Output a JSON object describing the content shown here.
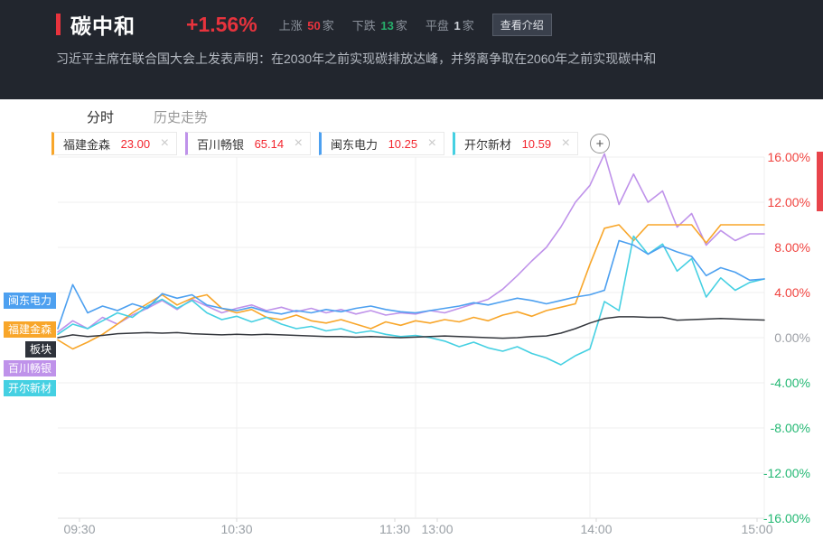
{
  "header": {
    "title": "碳中和",
    "change": "+1.56%",
    "stats": [
      {
        "label": "上涨",
        "count": "50",
        "unit": "家",
        "color": "#e8333d"
      },
      {
        "label": "下跌",
        "count": "13",
        "unit": "家",
        "color": "#27ae6b"
      },
      {
        "label": "平盘",
        "count": "1",
        "unit": "家",
        "color": "#cdd1d8"
      }
    ],
    "intro_button": "查看介绍",
    "description": "习近平主席在联合国大会上发表声明：在2030年之前实现碳排放达峰，并努离争取在2060年之前实现碳中和"
  },
  "tabs": [
    {
      "label": "分时",
      "active": true
    },
    {
      "label": "历史走势",
      "active": false
    }
  ],
  "watchlist": [
    {
      "name": "福建金森",
      "price": "23.00",
      "color": "#f8a62a",
      "close_label": "×"
    },
    {
      "name": "百川畅银",
      "price": "65.14",
      "color": "#bf92ea",
      "close_label": "×"
    },
    {
      "name": "闽东电力",
      "price": "10.25",
      "color": "#4da0f0",
      "close_label": "×"
    },
    {
      "name": "开尔新材",
      "price": "10.59",
      "color": "#45d0e2",
      "close_label": "×"
    }
  ],
  "add_button_label": "+",
  "chart_data": {
    "type": "line",
    "title": "碳中和板块分时走势",
    "interval_minutes": 5,
    "session_minutes": [
      0,
      120,
      240
    ],
    "ylim": [
      -16,
      16
    ],
    "grid": true,
    "x_ticks": [
      {
        "label": "09:30",
        "minute": 0,
        "dx": 24
      },
      {
        "label": "10:30",
        "minute": 60,
        "dx": 0
      },
      {
        "label": "11:30",
        "minute": 120,
        "dx": -23
      },
      {
        "label": "13:00",
        "minute": 120,
        "dx": 24
      },
      {
        "label": "14:00",
        "minute": 180,
        "dx": 7
      },
      {
        "label": "15:00",
        "minute": 240,
        "dx": -8
      }
    ],
    "y_ticks": [
      {
        "label": "16.00%",
        "value": 16,
        "color": "#f0433f"
      },
      {
        "label": "12.00%",
        "value": 12,
        "color": "#f0433f"
      },
      {
        "label": "8.00%",
        "value": 8,
        "color": "#f0433f"
      },
      {
        "label": "4.00%",
        "value": 4,
        "color": "#f0433f"
      },
      {
        "label": "0.00%",
        "value": 0,
        "color": "#9da0a6"
      },
      {
        "label": "-4.00%",
        "value": -4,
        "color": "#23b873"
      },
      {
        "label": "-8.00%",
        "value": -8,
        "color": "#23b873"
      },
      {
        "label": "-12.00%",
        "value": -12,
        "color": "#23b873"
      },
      {
        "label": "-16.00%",
        "value": -16,
        "color": "#23b873"
      }
    ],
    "grid_vertical_minutes": [
      60,
      120,
      180,
      240
    ],
    "series": [
      {
        "name": "百川畅银",
        "color": "#bf92ea",
        "values": [
          0.5,
          1.5,
          0.8,
          1.8,
          1.2,
          2.0,
          2.6,
          3.3,
          2.5,
          3.4,
          2.8,
          2.2,
          2.6,
          2.9,
          2.4,
          2.7,
          2.3,
          2.6,
          2.2,
          2.5,
          2.1,
          2.4,
          2.0,
          2.2,
          2.1,
          2.4,
          2.2,
          2.6,
          3.0,
          3.4,
          4.3,
          5.5,
          6.8,
          8.0,
          9.8,
          12.0,
          13.5,
          16.3,
          11.8,
          14.5,
          12.0,
          13.0,
          9.8,
          11.0,
          8.2,
          9.5,
          8.6,
          9.2,
          9.2
        ]
      },
      {
        "name": "福建金森",
        "color": "#f8a62a",
        "values": [
          -0.2,
          -1.0,
          -0.4,
          0.3,
          1.2,
          2.2,
          3.0,
          3.8,
          2.9,
          3.5,
          3.8,
          2.6,
          2.2,
          2.5,
          1.8,
          1.6,
          2.0,
          1.5,
          1.3,
          1.6,
          1.2,
          0.8,
          1.4,
          1.1,
          1.5,
          1.3,
          1.6,
          1.4,
          1.8,
          1.5,
          2.0,
          2.3,
          1.9,
          2.4,
          2.7,
          3.0,
          6.5,
          9.7,
          10.0,
          8.6,
          10.0,
          10.0,
          10.0,
          10.0,
          8.4,
          10.0,
          10.0,
          10.0,
          10.0
        ]
      },
      {
        "name": "开尔新材",
        "color": "#45d0e2",
        "values": [
          0.3,
          1.2,
          0.8,
          1.5,
          2.2,
          1.8,
          2.8,
          3.4,
          2.6,
          3.3,
          2.2,
          1.6,
          1.9,
          1.4,
          1.8,
          1.2,
          0.8,
          1.0,
          0.6,
          0.8,
          0.4,
          0.6,
          0.3,
          0.1,
          0.2,
          0.0,
          -0.3,
          -0.8,
          -0.4,
          -0.9,
          -1.2,
          -0.8,
          -1.4,
          -1.8,
          -2.4,
          -1.6,
          -1.0,
          3.2,
          2.4,
          9.0,
          7.4,
          8.3,
          5.9,
          7.0,
          3.6,
          5.3,
          4.2,
          4.9,
          5.2
        ]
      },
      {
        "name": "闽东电力",
        "color": "#4da0f0",
        "values": [
          0.8,
          4.7,
          2.2,
          2.8,
          2.4,
          3.0,
          2.6,
          3.9,
          3.5,
          3.8,
          2.9,
          2.6,
          2.4,
          2.7,
          2.3,
          2.1,
          2.4,
          2.2,
          2.5,
          2.3,
          2.6,
          2.8,
          2.5,
          2.3,
          2.2,
          2.4,
          2.6,
          2.8,
          3.1,
          2.9,
          3.2,
          3.5,
          3.3,
          3.0,
          3.3,
          3.6,
          3.8,
          4.2,
          8.6,
          8.2,
          7.4,
          8.1,
          7.6,
          7.2,
          5.5,
          6.2,
          5.8,
          5.1,
          5.2
        ]
      },
      {
        "name": "板块",
        "color": "#34373d",
        "values": [
          0.0,
          0.25,
          0.1,
          0.2,
          0.35,
          0.4,
          0.45,
          0.4,
          0.45,
          0.35,
          0.3,
          0.25,
          0.3,
          0.25,
          0.3,
          0.25,
          0.2,
          0.15,
          0.1,
          0.1,
          0.05,
          0.1,
          0.05,
          0.0,
          0.05,
          0.1,
          0.15,
          0.1,
          0.05,
          0.0,
          -0.05,
          0.0,
          0.1,
          0.15,
          0.4,
          0.8,
          1.3,
          1.7,
          1.85,
          1.85,
          1.8,
          1.8,
          1.55,
          1.6,
          1.65,
          1.7,
          1.65,
          1.6,
          1.56
        ]
      }
    ],
    "line_tags": [
      {
        "label": "闽东电力",
        "color": "#4da0f0",
        "y_pct": 3.3
      },
      {
        "label": "福建金森",
        "color": "#f8a62a",
        "y_pct": 0.7
      },
      {
        "label": "板块",
        "color": "#2f333b",
        "y_pct": -1.0
      },
      {
        "label": "百川畅银",
        "color": "#bf92ea",
        "y_pct": -2.7
      },
      {
        "label": "开尔新材",
        "color": "#45d0e2",
        "y_pct": -4.5
      }
    ],
    "legend_position": "left"
  }
}
